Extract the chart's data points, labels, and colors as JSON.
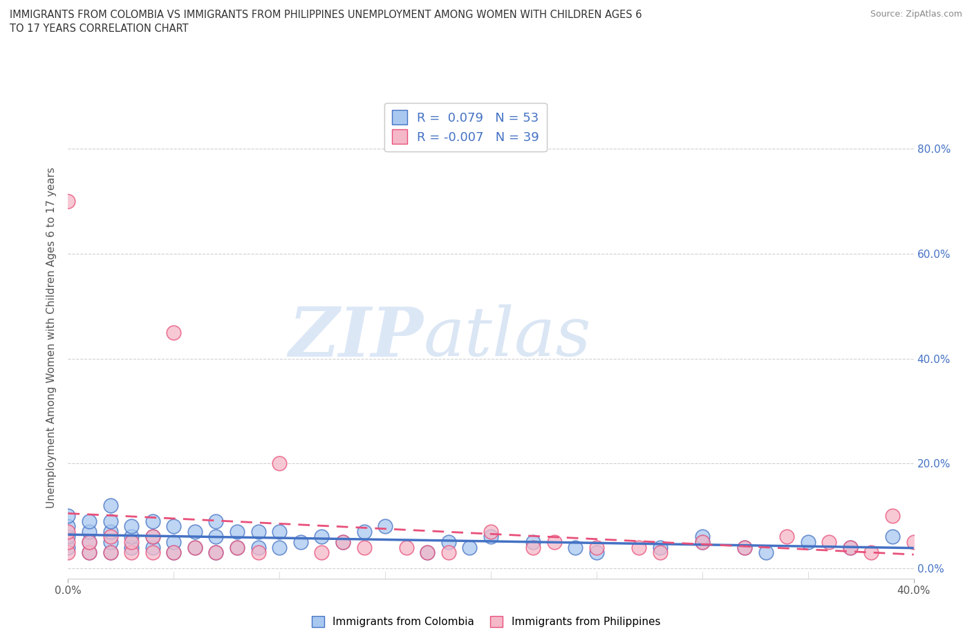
{
  "title": "IMMIGRANTS FROM COLOMBIA VS IMMIGRANTS FROM PHILIPPINES UNEMPLOYMENT AMONG WOMEN WITH CHILDREN AGES 6\nTO 17 YEARS CORRELATION CHART",
  "source": "Source: ZipAtlas.com",
  "ylabel": "Unemployment Among Women with Children Ages 6 to 17 years",
  "xlim": [
    0.0,
    0.4
  ],
  "ylim": [
    -0.02,
    0.9
  ],
  "x_ticks": [
    0.0,
    0.4
  ],
  "x_tick_labels": [
    "0.0%",
    "40.0%"
  ],
  "y_ticks": [
    0.0,
    0.2,
    0.4,
    0.6,
    0.8
  ],
  "y_right_labels": [
    "0.0%",
    "20.0%",
    "40.0%",
    "60.0%",
    "80.0%"
  ],
  "colombia_R": 0.079,
  "colombia_N": 53,
  "philippines_R": -0.007,
  "philippines_N": 39,
  "colombia_color": "#a8c8f0",
  "philippines_color": "#f5b8c8",
  "colombia_line_color": "#4472c4",
  "philippines_line_color": "#e8507a",
  "watermark_zip": "ZIP",
  "watermark_atlas": "atlas",
  "colombia_scatter_x": [
    0.0,
    0.0,
    0.0,
    0.0,
    0.01,
    0.01,
    0.01,
    0.01,
    0.02,
    0.02,
    0.02,
    0.02,
    0.02,
    0.03,
    0.03,
    0.03,
    0.04,
    0.04,
    0.04,
    0.05,
    0.05,
    0.05,
    0.06,
    0.06,
    0.07,
    0.07,
    0.07,
    0.08,
    0.08,
    0.09,
    0.09,
    0.1,
    0.1,
    0.11,
    0.12,
    0.13,
    0.14,
    0.15,
    0.17,
    0.18,
    0.19,
    0.2,
    0.22,
    0.24,
    0.25,
    0.28,
    0.3,
    0.3,
    0.32,
    0.33,
    0.35,
    0.37,
    0.39
  ],
  "colombia_scatter_y": [
    0.04,
    0.06,
    0.08,
    0.1,
    0.03,
    0.05,
    0.07,
    0.09,
    0.03,
    0.05,
    0.07,
    0.09,
    0.12,
    0.04,
    0.06,
    0.08,
    0.04,
    0.06,
    0.09,
    0.03,
    0.05,
    0.08,
    0.04,
    0.07,
    0.03,
    0.06,
    0.09,
    0.04,
    0.07,
    0.04,
    0.07,
    0.04,
    0.07,
    0.05,
    0.06,
    0.05,
    0.07,
    0.08,
    0.03,
    0.05,
    0.04,
    0.06,
    0.05,
    0.04,
    0.03,
    0.04,
    0.05,
    0.06,
    0.04,
    0.03,
    0.05,
    0.04,
    0.06
  ],
  "philippines_scatter_x": [
    0.0,
    0.0,
    0.0,
    0.0,
    0.01,
    0.01,
    0.02,
    0.02,
    0.03,
    0.03,
    0.04,
    0.04,
    0.05,
    0.05,
    0.06,
    0.07,
    0.08,
    0.09,
    0.1,
    0.12,
    0.13,
    0.14,
    0.16,
    0.17,
    0.18,
    0.2,
    0.22,
    0.23,
    0.25,
    0.27,
    0.28,
    0.3,
    0.32,
    0.34,
    0.36,
    0.37,
    0.38,
    0.39,
    0.4
  ],
  "philippines_scatter_y": [
    0.03,
    0.05,
    0.07,
    0.7,
    0.03,
    0.05,
    0.03,
    0.06,
    0.03,
    0.05,
    0.03,
    0.06,
    0.03,
    0.45,
    0.04,
    0.03,
    0.04,
    0.03,
    0.2,
    0.03,
    0.05,
    0.04,
    0.04,
    0.03,
    0.03,
    0.07,
    0.04,
    0.05,
    0.04,
    0.04,
    0.03,
    0.05,
    0.04,
    0.06,
    0.05,
    0.04,
    0.03,
    0.1,
    0.05
  ]
}
